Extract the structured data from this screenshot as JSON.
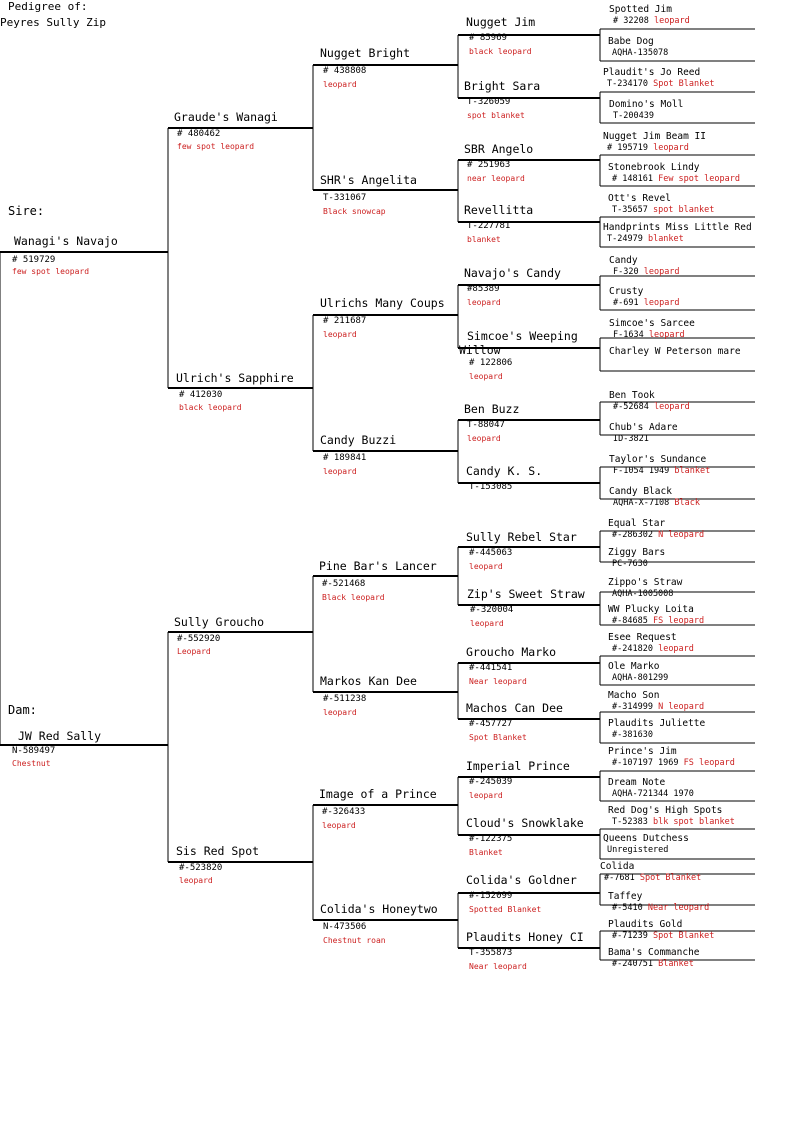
{
  "header": {
    "line1": "Pedigree of:",
    "line2": "Peyres Sully Zip"
  },
  "labels": {
    "sire": "Sire:",
    "dam": "Dam:"
  },
  "sire": {
    "name": "Wanagi's Navajo",
    "reg": "# 519729",
    "color": "few spot leopard"
  },
  "dam": {
    "name": "JW Red Sally",
    "reg": "N-589497",
    "color": "Chestnut"
  },
  "g2": [
    {
      "name": "Graude's Wanagi",
      "reg": "# 480462",
      "color": "few spot leopard"
    },
    {
      "name": "Ulrich's Sapphire",
      "reg": "# 412030",
      "color": "black leopard"
    },
    {
      "name": "Sully Groucho",
      "reg": "#-552920",
      "color": "Leopard"
    },
    {
      "name": "Sis Red Spot",
      "reg": "#-523820",
      "color": "leopard"
    }
  ],
  "g3": [
    {
      "name": "Nugget Bright",
      "reg": "# 438808",
      "color": "leopard"
    },
    {
      "name": "SHR's Angelita",
      "reg": "T-331067",
      "color": "Black snowcap"
    },
    {
      "name": "Ulrichs Many Coups",
      "reg": "# 211687",
      "color": "leopard"
    },
    {
      "name": "Candy Buzzi",
      "reg": "# 189841",
      "color": "leopard"
    },
    {
      "name": "Pine Bar's Lancer",
      "reg": "#-521468",
      "color": "Black leopard"
    },
    {
      "name": "Markos Kan Dee",
      "reg": "#-511238",
      "color": "leopard"
    },
    {
      "name": "Image of a Prince",
      "reg": "#-326433",
      "color": "leopard"
    },
    {
      "name": "Colida's Honeytwo",
      "reg": "N-473506",
      "color": "Chestnut roan"
    }
  ],
  "g4": [
    {
      "name": "Nugget Jim",
      "reg": "# 85969",
      "color": "black leopard"
    },
    {
      "name": "Bright Sara",
      "reg": "T-326059",
      "color": "spot blanket"
    },
    {
      "name": "SBR Angelo",
      "reg": "# 251963",
      "color": "near leopard"
    },
    {
      "name": "Revellitta",
      "reg": "T-227781",
      "color": "blanket"
    },
    {
      "name": "Navajo's Candy",
      "reg": "#85389",
      "color": "leopard"
    },
    {
      "name": "Simcoe's Weeping Willow",
      "name_a": "Simcoe's Weeping",
      "name_b": "Willow",
      "reg": "# 122806",
      "color": "leopard"
    },
    {
      "name": "Ben Buzz",
      "reg": "T-88047",
      "color": "leopard"
    },
    {
      "name": "Candy K. S.",
      "reg": "T-153085",
      "color": ""
    },
    {
      "name": "Sully Rebel Star",
      "reg": "#-445063",
      "color": "leopard"
    },
    {
      "name": "Zip's Sweet Straw",
      "reg": "#-320004",
      "color": "leopard"
    },
    {
      "name": "Groucho Marko",
      "reg": "#-441541",
      "color": "Near leopard"
    },
    {
      "name": "Machos Can Dee",
      "reg": "#-457727",
      "color": "Spot Blanket"
    },
    {
      "name": "Imperial Prince",
      "reg": "#-245039",
      "color": "leopard"
    },
    {
      "name": "Cloud's Snowklake",
      "reg": "#-122375",
      "color": "Blanket"
    },
    {
      "name": "Colida's Goldner",
      "reg": "#-152099",
      "color": "Spotted Blanket"
    },
    {
      "name": "Plaudits Honey CI",
      "reg": "T-355873",
      "color": "Near leopard"
    }
  ],
  "g5": [
    {
      "name": "Spotted Jim",
      "reg": "# 32208",
      "color": "leopard"
    },
    {
      "name": "Babe Dog",
      "reg": "AQHA-135078",
      "color": ""
    },
    {
      "name": "Plaudit's Jo Reed",
      "reg": "T-234170",
      "color": "Spot Blanket"
    },
    {
      "name": "Domino's Moll",
      "reg": "T-200439",
      "color": ""
    },
    {
      "name": "Nugget Jim Beam II",
      "reg": "# 195719",
      "color": "leopard"
    },
    {
      "name": "Stonebrook Lindy",
      "reg": "# 148161",
      "color": "Few spot leopard"
    },
    {
      "name": "Ott's Revel",
      "reg": "T-35657",
      "color": "spot blanket"
    },
    {
      "name": "Handprints Miss Little Red",
      "reg": "T-24979",
      "color": "blanket"
    },
    {
      "name": "Candy",
      "reg": "F-320",
      "color": "leopard"
    },
    {
      "name": "Crusty",
      "reg": "#-691",
      "color": "leopard"
    },
    {
      "name": "Simcoe's Sarcee",
      "reg": "F-1634",
      "color": "leopard"
    },
    {
      "name": "Charley W Peterson mare",
      "reg": "",
      "color": ""
    },
    {
      "name": "Ben Took",
      "reg": "#-52684",
      "color": "leopard"
    },
    {
      "name": "Chub's Adare",
      "reg": "ID-3821",
      "color": ""
    },
    {
      "name": "Taylor's Sundance",
      "reg": "F-1054 1949",
      "color": "blanket"
    },
    {
      "name": "Candy Black",
      "reg": "AQHA-X-7108",
      "color": "Black"
    },
    {
      "name": "Equal Star",
      "reg": "#-286302",
      "color": "N leopard"
    },
    {
      "name": "Ziggy Bars",
      "reg": "PC-7630",
      "color": ""
    },
    {
      "name": "Zippo's Straw",
      "reg": "AQHA-1005008",
      "color": ""
    },
    {
      "name": "WW Plucky Loita",
      "reg": "#-84685",
      "color": "FS leopard"
    },
    {
      "name": "Esee Request",
      "reg": "#-241820",
      "color": "leopard"
    },
    {
      "name": "Ole Marko",
      "reg": "AQHA-801299",
      "color": ""
    },
    {
      "name": "Macho Son",
      "reg": "#-314999",
      "color": "N leopard"
    },
    {
      "name": "Plaudits Juliette",
      "reg": "#-381630",
      "color": ""
    },
    {
      "name": "Prince's Jim",
      "reg": "#-107197 1969",
      "color": "FS leopard"
    },
    {
      "name": "Dream Note",
      "reg": "AQHA-721344 1970",
      "color": ""
    },
    {
      "name": "Red Dog's High Spots",
      "reg": "T-52383",
      "color": "blk spot blanket"
    },
    {
      "name": "Queens Dutchess",
      "reg": "Unregistered",
      "color": ""
    },
    {
      "name": "Colida",
      "reg": "#-7681",
      "color": "Spot Blanket"
    },
    {
      "name": "Taffey",
      "reg": "#-5410",
      "color": "Near leopard"
    },
    {
      "name": "Plaudits Gold",
      "reg": "#-71239",
      "color": "Spot Blanket"
    },
    {
      "name": "Bama's Commanche",
      "reg": "#-240751",
      "color": "Blanket"
    }
  ]
}
